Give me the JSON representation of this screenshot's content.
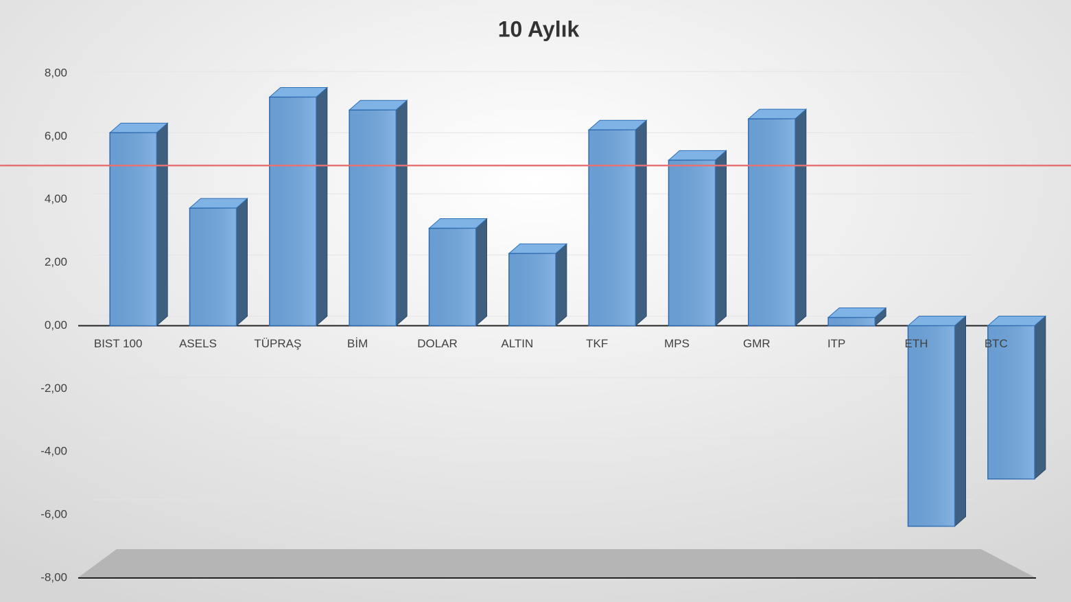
{
  "chart_data": {
    "type": "bar3d",
    "title": "10 Aylık",
    "categories": [
      "BIST 100",
      "ASELS",
      "TÜPRAŞ",
      "BİM",
      "DOLAR",
      "ALTIN",
      "TKF",
      "MPS",
      "GMR",
      "ITP",
      "ETH",
      "BTC"
    ],
    "values": [
      6.12,
      3.73,
      7.25,
      6.84,
      3.09,
      2.29,
      6.21,
      5.25,
      6.56,
      0.26,
      -6.36,
      -4.86
    ],
    "color": "#6fa6de",
    "reference_line": {
      "value": 5.08,
      "color": "#e57373"
    },
    "ylim": [
      -8,
      8
    ],
    "yticks": [
      {
        "value": -8,
        "label": "-8,00"
      },
      {
        "value": -6,
        "label": "-6,00"
      },
      {
        "value": -4,
        "label": "-4,00"
      },
      {
        "value": -2,
        "label": "-2,00"
      },
      {
        "value": 0,
        "label": "0,00"
      },
      {
        "value": 2,
        "label": "2,00"
      },
      {
        "value": 4,
        "label": "4,00"
      },
      {
        "value": 6,
        "label": "6,00"
      },
      {
        "value": 8,
        "label": "8,00"
      }
    ],
    "grid": true
  }
}
